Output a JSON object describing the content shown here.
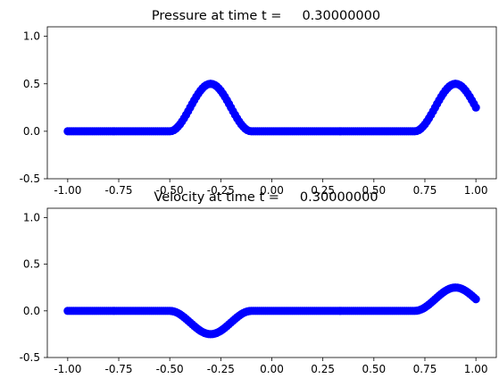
{
  "chart_data": [
    {
      "type": "scatter",
      "title": "Pressure at time t =     0.30000000",
      "xlabel": "",
      "ylabel": "",
      "xlim": [
        -1.1,
        1.1
      ],
      "ylim": [
        -0.5,
        1.1
      ],
      "xticks": [
        "-1.00",
        "-0.75",
        "-0.50",
        "-0.25",
        "0.00",
        "0.25",
        "0.50",
        "0.75",
        "1.00"
      ],
      "yticks": [
        "-0.5",
        "0.0",
        "0.5",
        "1.0"
      ],
      "grid": false,
      "marker_color": "#0000ff",
      "series": [
        {
          "bumps": [
            {
              "center": -0.3,
              "halfwidth": 0.2,
              "amplitude": 0.5
            },
            {
              "center": 0.9,
              "halfwidth": 0.2,
              "amplitude": 0.5
            }
          ],
          "x_range": [
            -1.0,
            1.0
          ],
          "n_points": 201
        }
      ]
    },
    {
      "type": "scatter",
      "title": "Velocity at time t =     0.30000000",
      "xlabel": "",
      "ylabel": "",
      "xlim": [
        -1.1,
        1.1
      ],
      "ylim": [
        -0.5,
        1.1
      ],
      "xticks": [
        "-1.00",
        "-0.75",
        "-0.50",
        "-0.25",
        "0.00",
        "0.25",
        "0.50",
        "0.75",
        "1.00"
      ],
      "yticks": [
        "-0.5",
        "0.0",
        "0.5",
        "1.0"
      ],
      "grid": false,
      "marker_color": "#0000ff",
      "series": [
        {
          "bumps": [
            {
              "center": -0.3,
              "halfwidth": 0.2,
              "amplitude": -0.25
            },
            {
              "center": 0.9,
              "halfwidth": 0.2,
              "amplitude": 0.25
            }
          ],
          "x_range": [
            -1.0,
            1.0
          ],
          "n_points": 201
        }
      ]
    }
  ]
}
